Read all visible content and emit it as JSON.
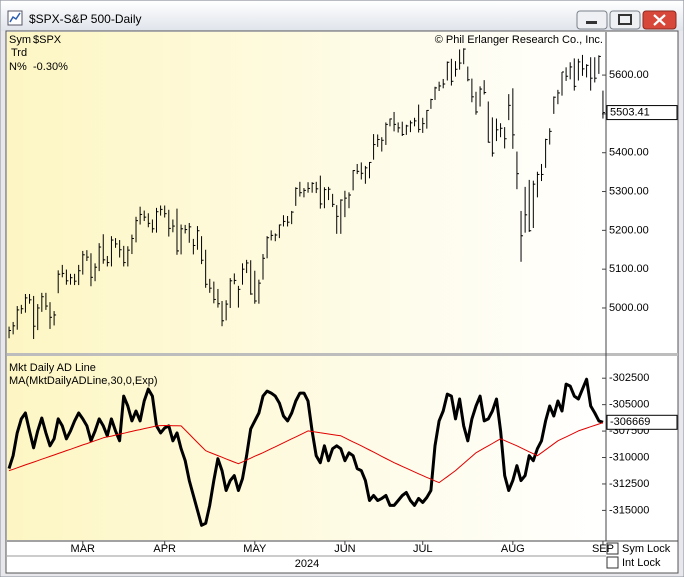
{
  "window": {
    "title": "$SPX-S&P 500-Daily",
    "sym_lock": "Sym Lock",
    "int_lock": "Int Lock"
  },
  "chart_data": [
    {
      "type": "hlc",
      "copyright": "© Phil Erlanger Research Co., Inc.",
      "legend": {
        "sym_label": "Sym",
        "symbol": "$SPX",
        "trd_label": "Trd",
        "pct_label": "N%",
        "pct": "-0.30%"
      },
      "color": "#000000",
      "ylim": [
        4884,
        5711
      ],
      "yticks": [
        {
          "value": 5000,
          "label": "5000.00"
        },
        {
          "value": 5100,
          "label": "5100.00"
        },
        {
          "value": 5200,
          "label": "5200.00"
        },
        {
          "value": 5300,
          "label": "5300.00"
        },
        {
          "value": 5400,
          "label": "5400.00"
        },
        {
          "value": 5500,
          "label": "5500.00"
        },
        {
          "value": 5600,
          "label": "5600.00"
        }
      ],
      "high": [
        4952,
        4964,
        5005,
        5008,
        5036,
        5036,
        5031,
        5010,
        5039,
        5039,
        5015,
        4992,
        5097,
        5111,
        5099,
        5088,
        5088,
        5111,
        5147,
        5149,
        5141,
        5115,
        5167,
        5190,
        5134,
        5185,
        5180,
        5175,
        5160,
        5159,
        5189,
        5235,
        5261,
        5251,
        5244,
        5228,
        5258,
        5264,
        5264,
        5253,
        5228,
        5256,
        5215,
        5214,
        5219,
        5178,
        5211,
        5185,
        5150,
        5075,
        5068,
        5049,
        5018,
        5020,
        5077,
        5089,
        5057,
        5115,
        5124,
        5123,
        5096,
        5073,
        5139,
        5185,
        5200,
        5192,
        5215,
        5239,
        5237,
        5250,
        5311,
        5325,
        5309,
        5324,
        5324,
        5325,
        5341,
        5311,
        5312,
        5294,
        5265,
        5280,
        5302,
        5298,
        5355,
        5371,
        5375,
        5366,
        5376,
        5448,
        5447,
        5440,
        5478,
        5488,
        5505,
        5478,
        5480,
        5472,
        5483,
        5490,
        5524,
        5490,
        5510,
        5539,
        5570,
        5583,
        5590,
        5635,
        5642,
        5636,
        5666,
        5669,
        5622,
        5591,
        5557,
        5571,
        5587,
        5532,
        5491,
        5488,
        5476,
        5466,
        5551,
        5566,
        5403,
        5250,
        5312,
        5330,
        5328,
        5351,
        5371,
        5436,
        5463,
        5545,
        5562,
        5608,
        5620,
        5633,
        5643,
        5642,
        5652,
        5628,
        5646,
        5646,
        5651,
        5560
      ],
      "low": [
        4922,
        4932,
        4944,
        4985,
        4988,
        5011,
        4920,
        4943,
        4990,
        4995,
        4946,
        4955,
        5038,
        5079,
        5060,
        5060,
        5059,
        5059,
        5086,
        5121,
        5056,
        5069,
        5095,
        5114,
        5107,
        5107,
        5155,
        5130,
        5107,
        5107,
        5139,
        5169,
        5215,
        5224,
        5208,
        5194,
        5194,
        5238,
        5233,
        5184,
        5195,
        5137,
        5138,
        5192,
        5168,
        5138,
        5150,
        5113,
        5052,
        5039,
        5012,
        5001,
        4953,
        4968,
        5000,
        5061,
        5001,
        5060,
        5090,
        5034,
        5011,
        5011,
        5073,
        5128,
        5174,
        5172,
        5180,
        5210,
        5210,
        5216,
        5263,
        5287,
        5285,
        5297,
        5297,
        5296,
        5256,
        5257,
        5278,
        5260,
        5191,
        5191,
        5234,
        5257,
        5303,
        5345,
        5331,
        5320,
        5334,
        5382,
        5415,
        5403,
        5420,
        5468,
        5455,
        5452,
        5443,
        5446,
        5453,
        5468,
        5452,
        5451,
        5462,
        5513,
        5536,
        5559,
        5566,
        5586,
        5573,
        5596,
        5614,
        5628,
        5584,
        5530,
        5498,
        5519,
        5550,
        5426,
        5390,
        5430,
        5440,
        5411,
        5484,
        5410,
        5306,
        5119,
        5194,
        5196,
        5206,
        5285,
        5327,
        5361,
        5421,
        5500,
        5525,
        5547,
        5585,
        5589,
        5560,
        5586,
        5598,
        5594,
        5560,
        5581,
        5603,
        5488
      ],
      "close": [
        4942,
        4954,
        4995,
        4998,
        5026,
        5021,
        4953,
        5000,
        5029,
        5005,
        4976,
        4982,
        5087,
        5089,
        5070,
        5078,
        5069,
        5096,
        5137,
        5131,
        5079,
        5105,
        5157,
        5124,
        5117,
        5175,
        5165,
        5150,
        5117,
        5149,
        5179,
        5225,
        5241,
        5234,
        5218,
        5204,
        5248,
        5254,
        5243,
        5205,
        5211,
        5147,
        5204,
        5202,
        5209,
        5161,
        5199,
        5123,
        5061,
        5051,
        5022,
        5011,
        4967,
        5010,
        5070,
        5071,
        5048,
        5100,
        5116,
        5036,
        5018,
        5064,
        5128,
        5181,
        5187,
        5188,
        5214,
        5223,
        5221,
        5247,
        5308,
        5297,
        5303,
        5308,
        5321,
        5307,
        5268,
        5305,
        5306,
        5267,
        5236,
        5278,
        5283,
        5291,
        5354,
        5352,
        5347,
        5361,
        5375,
        5421,
        5434,
        5432,
        5473,
        5487,
        5473,
        5464,
        5447,
        5469,
        5477,
        5482,
        5460,
        5475,
        5509,
        5537,
        5567,
        5572,
        5577,
        5633,
        5584,
        5615,
        5631,
        5667,
        5588,
        5544,
        5505,
        5564,
        5555,
        5427,
        5399,
        5459,
        5463,
        5436,
        5522,
        5446,
        5346,
        5186,
        5240,
        5199,
        5319,
        5344,
        5344,
        5434,
        5455,
        5543,
        5554,
        5608,
        5597,
        5621,
        5571,
        5634,
        5616,
        5625,
        5592,
        5592,
        5648,
        5503.41
      ]
    },
    {
      "type": "line",
      "year_label": "2024",
      "categories": [
        null,
        null,
        null,
        null,
        null,
        null,
        null,
        null,
        null,
        null,
        null,
        null,
        null,
        null,
        null,
        null,
        null,
        null,
        "MAR",
        null,
        null,
        null,
        null,
        null,
        null,
        null,
        null,
        null,
        null,
        null,
        null,
        null,
        null,
        null,
        null,
        null,
        null,
        null,
        "APR",
        null,
        null,
        null,
        null,
        null,
        null,
        null,
        null,
        null,
        null,
        null,
        null,
        null,
        null,
        null,
        null,
        null,
        null,
        null,
        null,
        null,
        "MAY",
        null,
        null,
        null,
        null,
        null,
        null,
        null,
        null,
        null,
        null,
        null,
        null,
        null,
        null,
        null,
        null,
        null,
        null,
        null,
        null,
        null,
        "JUN",
        null,
        null,
        null,
        null,
        null,
        null,
        null,
        null,
        null,
        null,
        null,
        null,
        null,
        null,
        null,
        null,
        null,
        null,
        "JUL",
        null,
        null,
        null,
        null,
        null,
        null,
        null,
        null,
        null,
        null,
        null,
        null,
        null,
        null,
        null,
        null,
        null,
        null,
        null,
        null,
        null,
        "AUG",
        null,
        null,
        null,
        null,
        null,
        null,
        null,
        null,
        null,
        null,
        null,
        null,
        null,
        null,
        null,
        null,
        null,
        null,
        null,
        null,
        null,
        "SEP"
      ],
      "ylim": [
        -317800,
        -300400
      ],
      "yticks": [
        -315000,
        -312500,
        -310000,
        -307500,
        -305000,
        -302500
      ],
      "series": [
        {
          "name": "Mkt Daily AD Line",
          "color": "#000000",
          "values": [
            -311050,
            -309830,
            -307670,
            -306350,
            -305790,
            -307480,
            -309080,
            -307480,
            -306260,
            -307670,
            -308890,
            -308230,
            -306350,
            -307010,
            -308230,
            -307480,
            -306540,
            -305790,
            -306350,
            -307010,
            -308420,
            -307480,
            -306350,
            -307010,
            -307950,
            -306350,
            -307480,
            -308420,
            -304190,
            -305130,
            -306540,
            -305600,
            -306540,
            -304660,
            -303530,
            -304190,
            -307010,
            -307670,
            -307200,
            -307010,
            -308420,
            -307670,
            -309170,
            -310300,
            -312180,
            -313590,
            -315000,
            -316410,
            -316220,
            -314530,
            -312180,
            -310110,
            -311240,
            -313120,
            -312180,
            -311710,
            -313120,
            -311990,
            -309830,
            -307290,
            -306540,
            -305790,
            -304190,
            -303720,
            -303910,
            -304190,
            -304850,
            -306070,
            -306540,
            -305790,
            -304660,
            -303910,
            -303910,
            -304660,
            -307480,
            -309830,
            -310490,
            -308890,
            -310300,
            -309170,
            -308890,
            -309170,
            -310300,
            -309550,
            -309830,
            -311050,
            -311240,
            -312180,
            -314060,
            -313590,
            -314060,
            -313870,
            -313590,
            -314530,
            -314530,
            -314060,
            -313590,
            -313310,
            -314060,
            -314530,
            -313870,
            -314250,
            -313780,
            -313120,
            -308890,
            -306540,
            -305600,
            -304000,
            -304190,
            -306350,
            -304470,
            -307010,
            -308420,
            -306350,
            -305130,
            -304190,
            -306540,
            -306350,
            -305600,
            -304470,
            -307480,
            -311710,
            -313120,
            -312180,
            -310770,
            -312180,
            -311710,
            -309830,
            -310300,
            -309170,
            -308420,
            -306540,
            -305130,
            -306070,
            -304660,
            -305600,
            -303060,
            -303250,
            -304190,
            -304470,
            -303530,
            -302590,
            -305130,
            -305790,
            -306540,
            -306669
          ]
        },
        {
          "name": "MA(MktDailyADLine,30,0,Exp)",
          "color": "#e00000",
          "values": [
            -311240,
            -311110,
            -310970,
            -310840,
            -310700,
            -310570,
            -310430,
            -310300,
            -310160,
            -310030,
            -309890,
            -309760,
            -309620,
            -309490,
            -309350,
            -309220,
            -309080,
            -308950,
            -308810,
            -308680,
            -308540,
            -308410,
            -308280,
            -308140,
            -308050,
            -307970,
            -307880,
            -307790,
            -307710,
            -307620,
            -307530,
            -307440,
            -307360,
            -307270,
            -307190,
            -307100,
            -307010,
            -306980,
            -306970,
            -306970,
            -306990,
            -307000,
            -307010,
            -307400,
            -307790,
            -308190,
            -308580,
            -308970,
            -309360,
            -309520,
            -309670,
            -309820,
            -309970,
            -310130,
            -310280,
            -310430,
            -310580,
            -310410,
            -310230,
            -310060,
            -309880,
            -309710,
            -309540,
            -309360,
            -309170,
            -308990,
            -308800,
            -308610,
            -308420,
            -308230,
            -308050,
            -307860,
            -307670,
            -307480,
            -307540,
            -307600,
            -307660,
            -307720,
            -307780,
            -307830,
            -307890,
            -307950,
            -308140,
            -308330,
            -308520,
            -308700,
            -308890,
            -309090,
            -309290,
            -309490,
            -309690,
            -309890,
            -310090,
            -310290,
            -310490,
            -310660,
            -310840,
            -311010,
            -311190,
            -311360,
            -311540,
            -311710,
            -311880,
            -312040,
            -312210,
            -312370,
            -312090,
            -311810,
            -311520,
            -311240,
            -310900,
            -310570,
            -310230,
            -309890,
            -309550,
            -309330,
            -309110,
            -308890,
            -308670,
            -308450,
            -308230,
            -308400,
            -308560,
            -308730,
            -308890,
            -309080,
            -309270,
            -309460,
            -309640,
            -309830,
            -309550,
            -309270,
            -308990,
            -308700,
            -308420,
            -308230,
            -308050,
            -307860,
            -307670,
            -307480,
            -307350,
            -307220,
            -307090,
            -306960,
            -306830,
            -306700
          ]
        }
      ]
    }
  ]
}
